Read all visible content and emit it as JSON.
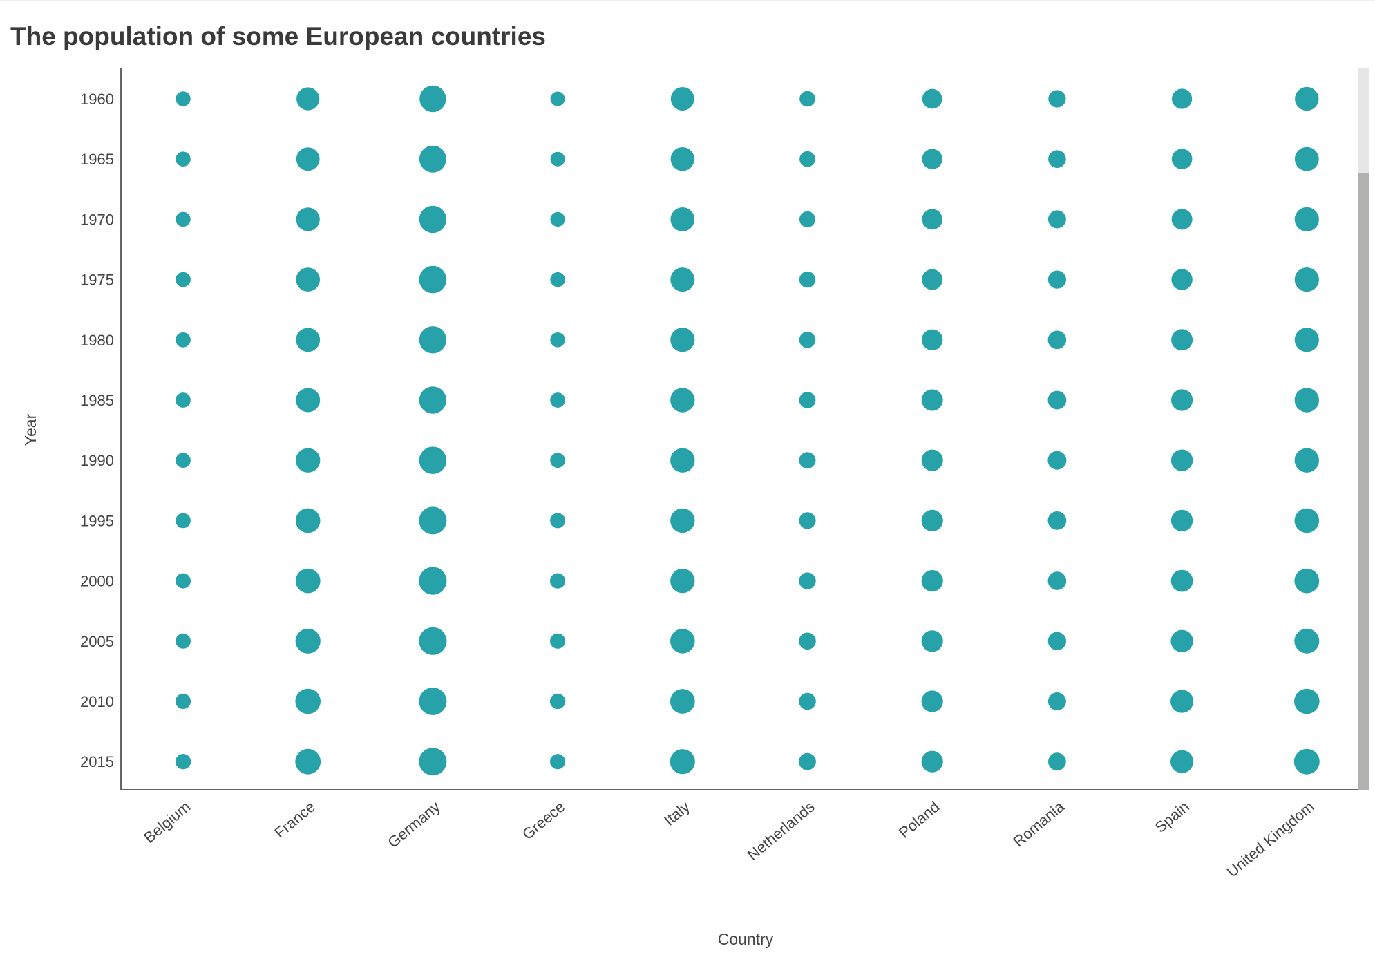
{
  "chart_data": {
    "type": "scatter",
    "title": "The population of some European countries",
    "xlabel": "Country",
    "ylabel": "Year",
    "categories": [
      "Belgium",
      "France",
      "Germany",
      "Greece",
      "Italy",
      "Netherlands",
      "Poland",
      "Romania",
      "Spain",
      "United Kingdom"
    ],
    "years": [
      "1960",
      "1965",
      "1970",
      "1975",
      "1980",
      "1985",
      "1990",
      "1995",
      "2000",
      "2005",
      "2010",
      "2015"
    ],
    "size_unit": "population (millions, estimated)",
    "marker_color": "#26a2a8",
    "grid": false,
    "series": [
      {
        "country": "Belgium",
        "values": [
          9.15,
          9.46,
          9.66,
          9.8,
          9.86,
          9.86,
          9.97,
          10.14,
          10.25,
          10.48,
          10.9,
          11.27
        ]
      },
      {
        "country": "France",
        "values": [
          46.6,
          49.0,
          51.0,
          52.7,
          53.9,
          55.3,
          56.7,
          57.8,
          58.9,
          61.0,
          62.9,
          64.5
        ]
      },
      {
        "country": "Germany",
        "values": [
          72.8,
          75.6,
          78.2,
          78.7,
          78.3,
          77.7,
          79.4,
          81.7,
          82.2,
          82.5,
          81.8,
          81.7
        ]
      },
      {
        "country": "Greece",
        "values": [
          8.33,
          8.55,
          8.79,
          9.05,
          9.64,
          9.93,
          10.16,
          10.56,
          10.81,
          11.0,
          11.12,
          10.86
        ]
      },
      {
        "country": "Italy",
        "values": [
          50.2,
          52.1,
          53.8,
          55.4,
          56.4,
          56.6,
          56.7,
          56.8,
          56.9,
          57.97,
          59.3,
          60.7
        ]
      },
      {
        "country": "Netherlands",
        "values": [
          11.5,
          12.3,
          13.0,
          13.7,
          14.1,
          14.5,
          14.9,
          15.5,
          15.9,
          16.3,
          16.6,
          16.9
        ]
      },
      {
        "country": "Poland",
        "values": [
          29.6,
          31.5,
          32.7,
          34.0,
          35.6,
          37.2,
          38.1,
          38.6,
          38.3,
          38.2,
          38.0,
          38.0
        ]
      },
      {
        "country": "Romania",
        "values": [
          18.4,
          19.0,
          20.3,
          21.2,
          22.2,
          22.7,
          23.2,
          22.7,
          22.4,
          21.3,
          20.2,
          19.8
        ]
      },
      {
        "country": "Spain",
        "values": [
          30.5,
          32.1,
          33.9,
          35.5,
          37.4,
          38.4,
          38.8,
          39.4,
          40.6,
          43.7,
          46.6,
          46.4
        ]
      },
      {
        "country": "United Kingdom",
        "values": [
          52.4,
          54.3,
          55.7,
          56.2,
          56.3,
          56.6,
          57.2,
          58.0,
          58.9,
          60.4,
          62.8,
          65.1
        ]
      }
    ]
  }
}
